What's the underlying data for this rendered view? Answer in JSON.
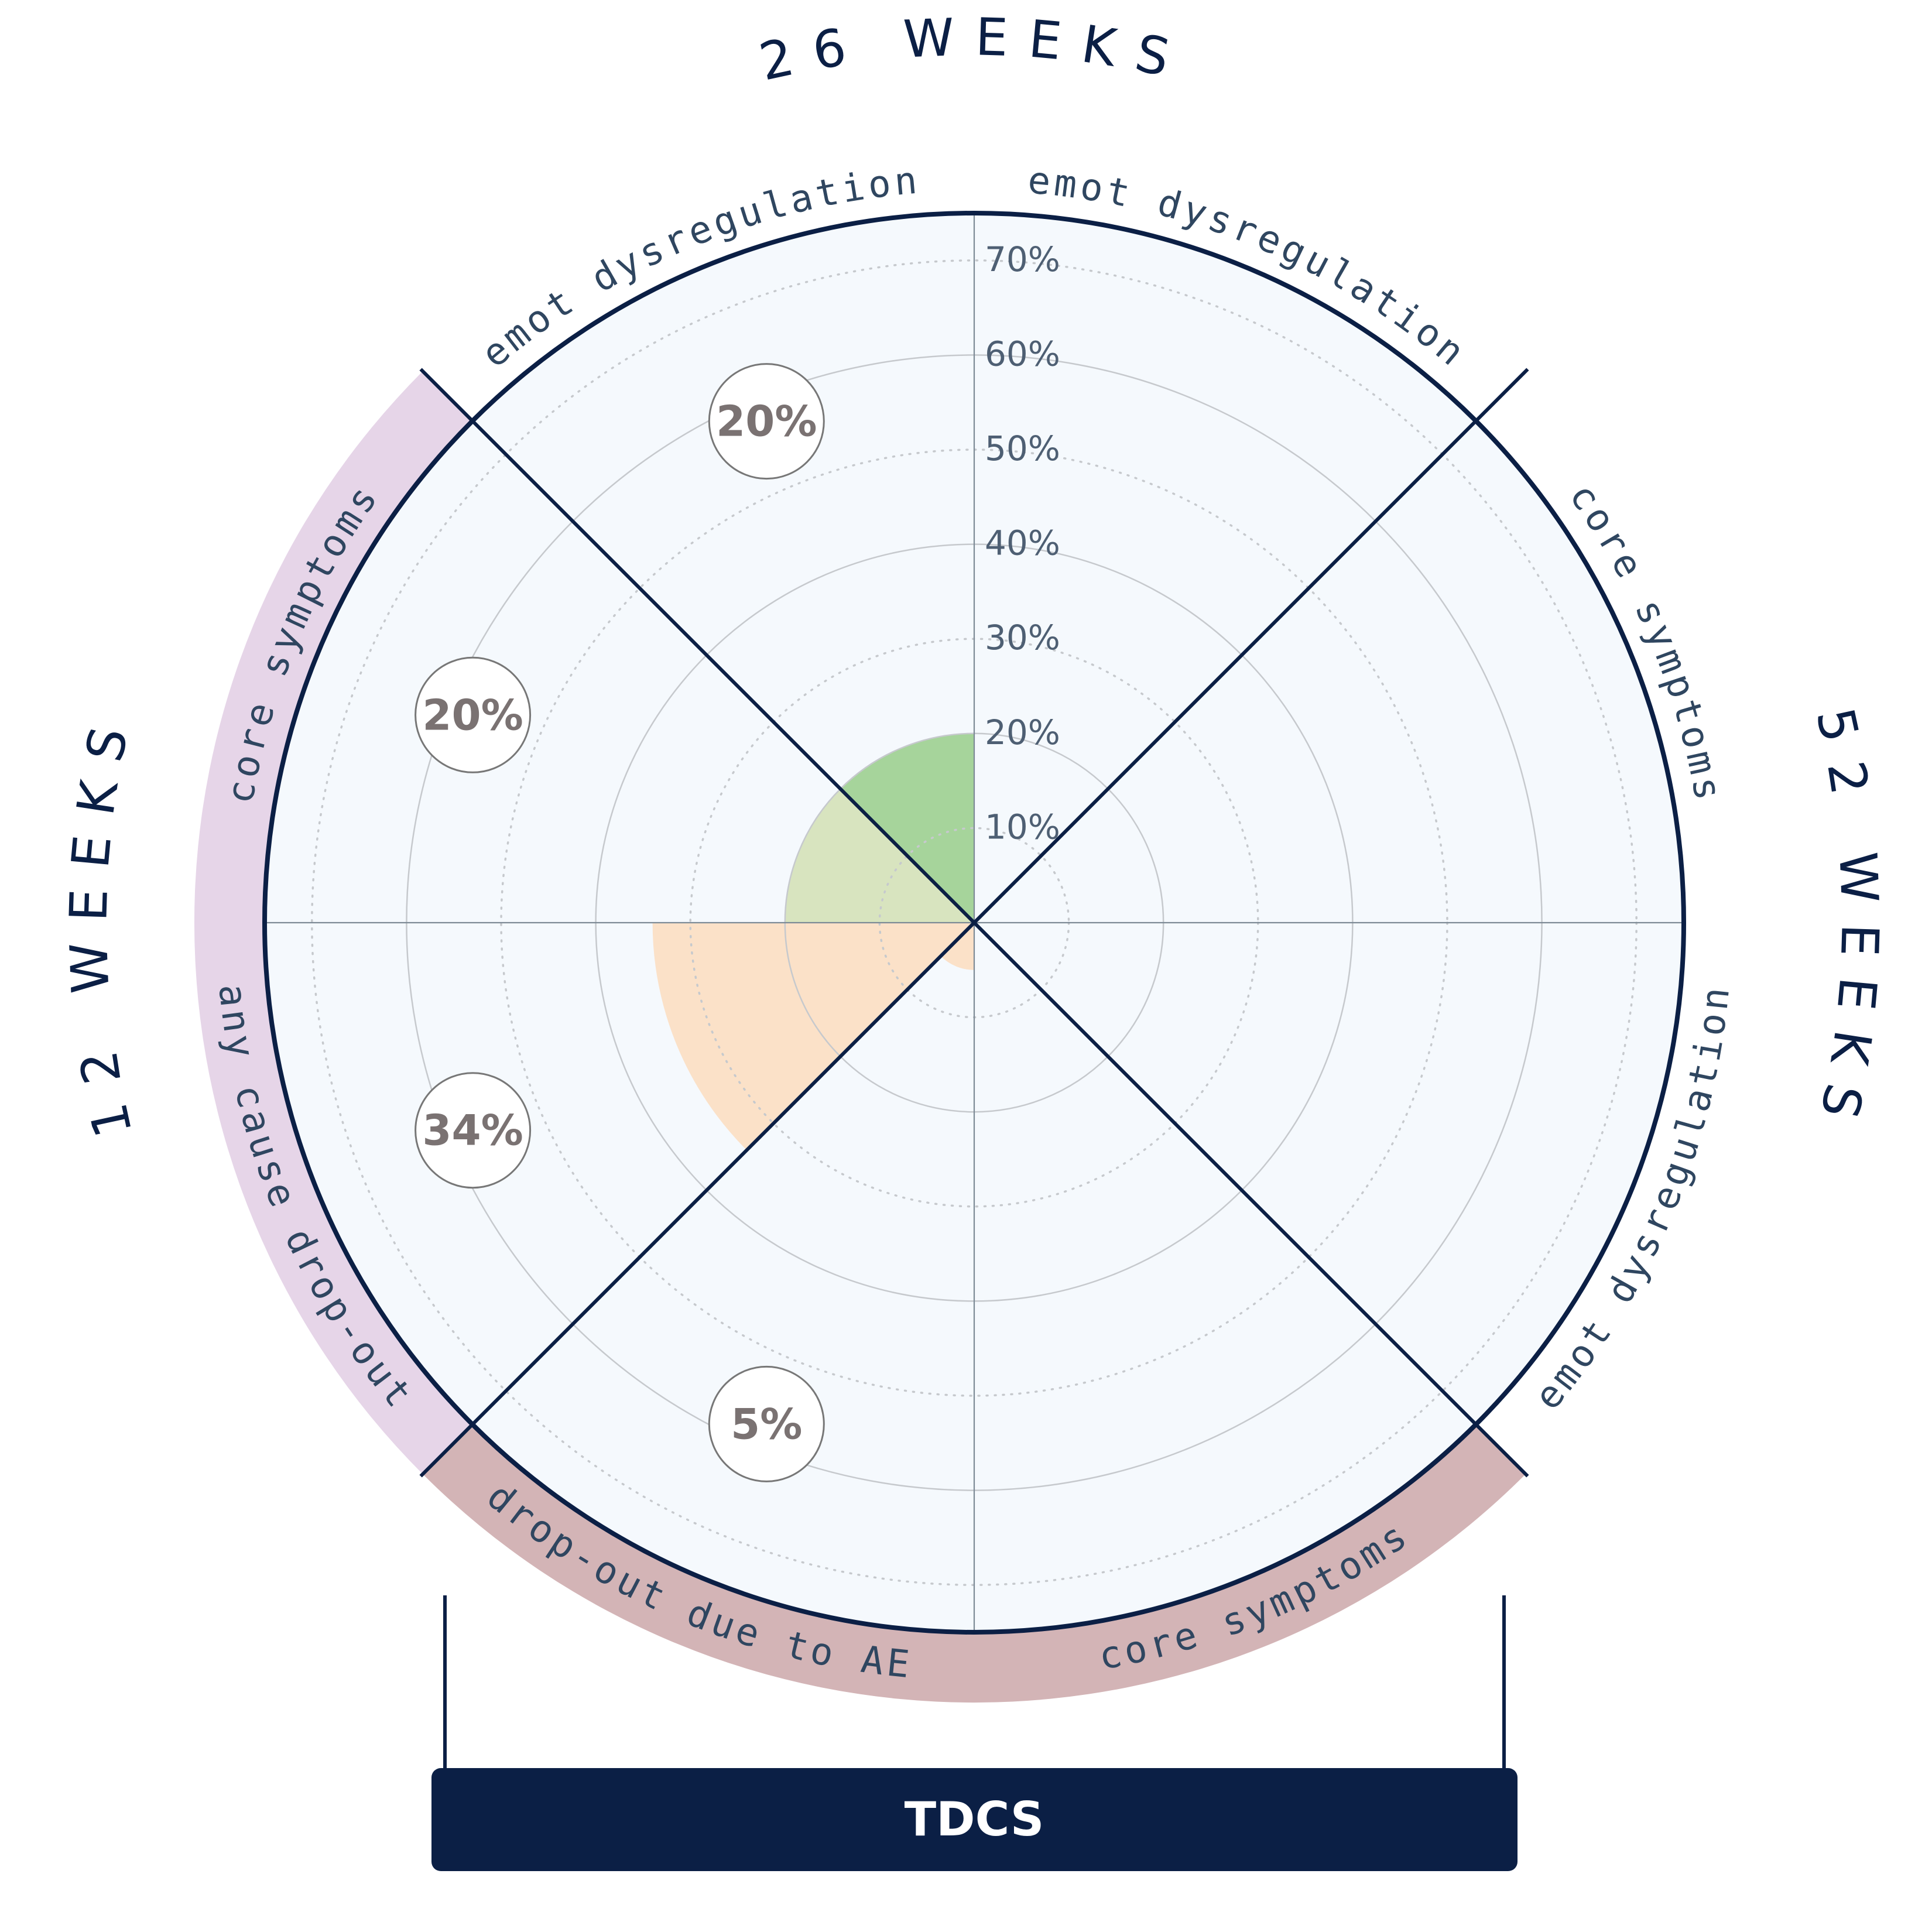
{
  "chart_data": {
    "type": "polar-area",
    "radial_ticks": [
      "10%",
      "20%",
      "30%",
      "40%",
      "50%",
      "60%",
      "70%"
    ],
    "radial_tick_values": [
      10,
      20,
      30,
      40,
      50,
      60,
      70
    ],
    "rmax": 75,
    "timepoints": [
      {
        "label": "12 WEEKS"
      },
      {
        "label": "26 WEEKS"
      },
      {
        "label": "52 WEEKS"
      }
    ],
    "sectors": [
      {
        "label": "core symptoms",
        "timepoint": "12 WEEKS",
        "value": 20,
        "badge": "20%",
        "color": "#d8e4bf"
      },
      {
        "label": "emot dysregulation",
        "timepoint": "12 WEEKS",
        "value": 20,
        "badge": "20%",
        "color": "#a6d49b"
      },
      {
        "label": "emot dysregulation",
        "timepoint": "26 WEEKS",
        "value": null,
        "badge": "",
        "color": ""
      },
      {
        "label": "core symptoms",
        "timepoint": "26 WEEKS",
        "value": null,
        "badge": "",
        "color": ""
      },
      {
        "label": "emot dysregulation",
        "timepoint": "52 WEEKS",
        "value": null,
        "badge": "",
        "color": ""
      },
      {
        "label": "core symptoms",
        "timepoint": "52 WEEKS",
        "value": null,
        "badge": "",
        "color": ""
      },
      {
        "label": "drop-out due to AE",
        "timepoint": "",
        "value": 5,
        "badge": "5%",
        "color": "#fbe1c8"
      },
      {
        "label": "any cause drop-out",
        "timepoint": "",
        "value": 34,
        "badge": "34%",
        "color": "#fbe1c8"
      }
    ],
    "bands": [
      {
        "name": "12 weeks band",
        "color": "#e6d5e8"
      },
      {
        "name": "drop-out band",
        "color": "#d3b4b6"
      }
    ],
    "colors": {
      "navy": "#0b1f45",
      "plot_bg": "#f5f9fd",
      "grid": "#c6c9cd",
      "badge_text": "#7a7272"
    },
    "intervention_label": "TDCS"
  }
}
